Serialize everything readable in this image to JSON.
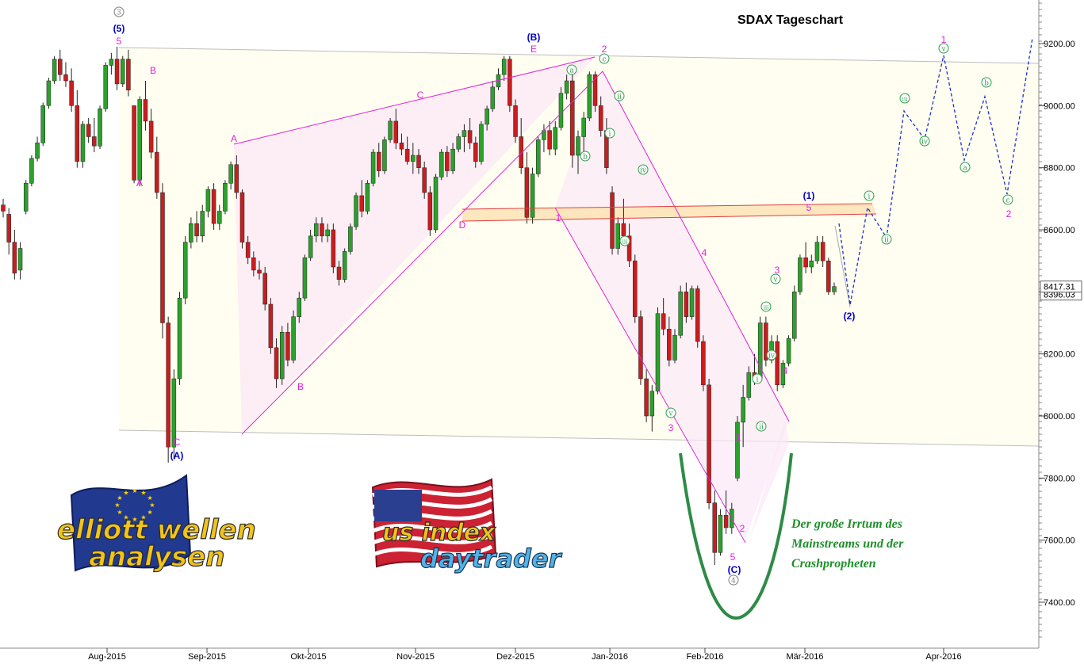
{
  "chart_data": {
    "type": "candlestick",
    "title": "SDAX Tageschart",
    "ylim": [
      7200,
      9320
    ],
    "y_ticks": [
      7400,
      7600,
      7800,
      8000,
      8200,
      8400,
      8600,
      8800,
      9000,
      9200
    ],
    "y_tick_labels": [
      "7400.00",
      "7600.00",
      "7800.00",
      "8000.00",
      "8200.00",
      "8400.00",
      "8600.00",
      "8800.00",
      "9000.00",
      "9200.00"
    ],
    "x_months": [
      "Aug-2015",
      "Sep-2015",
      "Okt-2015",
      "Nov-2015",
      "Dez-2015",
      "Jan-2016",
      "Feb-2016",
      "Mär-2016",
      "Apr-2016"
    ],
    "last_price_label": "8417.31",
    "last_price_label_under": "8396.03",
    "last_price": 8417,
    "candle_colors": {
      "up": "#2ca02c",
      "down": "#c81e1e"
    },
    "annotation_colors": {
      "magenta": "#e020e0",
      "blue": "#0000cc",
      "green_circle": "#2e9e4a",
      "gray": "#808080"
    },
    "candles": [
      [
        8680,
        8700,
        8640,
        8660
      ],
      [
        8650,
        8670,
        8520,
        8560
      ],
      [
        8560,
        8600,
        8440,
        8460
      ],
      [
        8470,
        8560,
        8440,
        8540
      ],
      [
        8660,
        8760,
        8650,
        8750
      ],
      [
        8750,
        8840,
        8740,
        8830
      ],
      [
        8830,
        8900,
        8820,
        8880
      ],
      [
        8880,
        9010,
        8870,
        9000
      ],
      [
        9000,
        9090,
        8990,
        9080
      ],
      [
        9080,
        9160,
        9070,
        9150
      ],
      [
        9150,
        9180,
        9080,
        9100
      ],
      [
        9100,
        9140,
        9060,
        9080
      ],
      [
        9080,
        9120,
        8980,
        9000
      ],
      [
        9000,
        9050,
        8800,
        8820
      ],
      [
        8820,
        8950,
        8800,
        8940
      ],
      [
        8940,
        8960,
        8880,
        8900
      ],
      [
        8900,
        8960,
        8850,
        8870
      ],
      [
        8870,
        9000,
        8860,
        8990
      ],
      [
        8990,
        9140,
        8980,
        9130
      ],
      [
        9130,
        9170,
        9100,
        9150
      ],
      [
        9150,
        9190,
        9050,
        9070
      ],
      [
        9070,
        9160,
        9060,
        9150
      ],
      [
        9150,
        9180,
        9030,
        9050
      ],
      [
        9000,
        9000,
        8750,
        8760
      ],
      [
        8760,
        9030,
        8740,
        9020
      ],
      [
        9020,
        9080,
        8920,
        8950
      ],
      [
        8950,
        8990,
        8830,
        8850
      ],
      [
        8850,
        8900,
        8700,
        8720
      ],
      [
        8720,
        8750,
        8250,
        8300
      ],
      [
        8300,
        8320,
        7850,
        7900
      ],
      [
        7900,
        8150,
        7860,
        8120
      ],
      [
        8120,
        8400,
        8100,
        8380
      ],
      [
        8380,
        8580,
        8360,
        8560
      ],
      [
        8560,
        8640,
        8540,
        8620
      ],
      [
        8620,
        8660,
        8560,
        8580
      ],
      [
        8580,
        8680,
        8560,
        8660
      ],
      [
        8660,
        8740,
        8640,
        8730
      ],
      [
        8730,
        8750,
        8600,
        8620
      ],
      [
        8620,
        8680,
        8600,
        8660
      ],
      [
        8660,
        8760,
        8650,
        8750
      ],
      [
        8750,
        8820,
        8730,
        8810
      ],
      [
        8810,
        8840,
        8700,
        8720
      ],
      [
        8720,
        8730,
        8540,
        8560
      ],
      [
        8560,
        8580,
        8490,
        8510
      ],
      [
        8510,
        8530,
        8450,
        8470
      ],
      [
        8470,
        8500,
        8440,
        8460
      ],
      [
        8460,
        8480,
        8340,
        8360
      ],
      [
        8360,
        8380,
        8200,
        8220
      ],
      [
        8220,
        8250,
        8090,
        8120
      ],
      [
        8120,
        8290,
        8100,
        8270
      ],
      [
        8270,
        8300,
        8160,
        8180
      ],
      [
        8180,
        8340,
        8170,
        8320
      ],
      [
        8320,
        8400,
        8300,
        8380
      ],
      [
        8380,
        8520,
        8370,
        8510
      ],
      [
        8510,
        8600,
        8500,
        8580
      ],
      [
        8580,
        8640,
        8560,
        8620
      ],
      [
        8620,
        8640,
        8560,
        8580
      ],
      [
        8580,
        8620,
        8560,
        8600
      ],
      [
        8600,
        8620,
        8460,
        8480
      ],
      [
        8480,
        8500,
        8420,
        8440
      ],
      [
        8440,
        8540,
        8430,
        8530
      ],
      [
        8530,
        8620,
        8520,
        8610
      ],
      [
        8610,
        8720,
        8600,
        8710
      ],
      [
        8710,
        8760,
        8640,
        8660
      ],
      [
        8660,
        8760,
        8650,
        8750
      ],
      [
        8750,
        8860,
        8740,
        8850
      ],
      [
        8850,
        8880,
        8770,
        8790
      ],
      [
        8790,
        8900,
        8780,
        8890
      ],
      [
        8890,
        8960,
        8880,
        8950
      ],
      [
        8950,
        8990,
        8860,
        8880
      ],
      [
        8880,
        8910,
        8840,
        8860
      ],
      [
        8860,
        8900,
        8810,
        8820
      ],
      [
        8820,
        8880,
        8780,
        8840
      ],
      [
        8840,
        8860,
        8780,
        8800
      ],
      [
        8800,
        8820,
        8700,
        8720
      ],
      [
        8720,
        8740,
        8580,
        8600
      ],
      [
        8600,
        8780,
        8590,
        8770
      ],
      [
        8770,
        8860,
        8760,
        8850
      ],
      [
        8850,
        8870,
        8770,
        8790
      ],
      [
        8790,
        8880,
        8780,
        8860
      ],
      [
        8860,
        8910,
        8850,
        8900
      ],
      [
        8900,
        8940,
        8850,
        8920
      ],
      [
        8920,
        8960,
        8860,
        8880
      ],
      [
        8880,
        8900,
        8800,
        8820
      ],
      [
        8820,
        8950,
        8810,
        8940
      ],
      [
        8940,
        9000,
        8920,
        8990
      ],
      [
        8990,
        9080,
        8980,
        9060
      ],
      [
        9060,
        9120,
        9050,
        9100
      ],
      [
        9100,
        9160,
        9080,
        9150
      ],
      [
        9150,
        9160,
        8980,
        9000
      ],
      [
        9000,
        9020,
        8880,
        8900
      ],
      [
        8900,
        8960,
        8780,
        8800
      ],
      [
        8800,
        8850,
        8620,
        8640
      ],
      [
        8640,
        8800,
        8620,
        8780
      ],
      [
        8780,
        8900,
        8770,
        8890
      ],
      [
        8890,
        8940,
        8850,
        8920
      ],
      [
        8920,
        8950,
        8840,
        8860
      ],
      [
        8860,
        8950,
        8840,
        8930
      ],
      [
        8930,
        9060,
        8920,
        9040
      ],
      [
        9040,
        9100,
        9020,
        9080
      ],
      [
        9080,
        9100,
        8800,
        8840
      ],
      [
        8840,
        8920,
        8780,
        8900
      ],
      [
        8900,
        8980,
        8850,
        8960
      ],
      [
        8960,
        9110,
        8950,
        9100
      ],
      [
        9100,
        9110,
        8980,
        9000
      ],
      [
        9000,
        9030,
        8900,
        8920
      ],
      [
        8920,
        8960,
        8780,
        8800
      ],
      [
        8720,
        8740,
        8520,
        8540
      ],
      [
        8540,
        8640,
        8520,
        8620
      ],
      [
        8620,
        8700,
        8560,
        8580
      ],
      [
        8580,
        8620,
        8480,
        8500
      ],
      [
        8500,
        8520,
        8300,
        8320
      ],
      [
        8320,
        8340,
        8100,
        8120
      ],
      [
        8120,
        8150,
        7980,
        8000
      ],
      [
        8000,
        8100,
        7950,
        8080
      ],
      [
        8080,
        8350,
        8070,
        8330
      ],
      [
        8330,
        8380,
        8260,
        8280
      ],
      [
        8280,
        8320,
        8160,
        8180
      ],
      [
        8180,
        8280,
        8170,
        8260
      ],
      [
        8260,
        8420,
        8250,
        8400
      ],
      [
        8400,
        8430,
        8300,
        8320
      ],
      [
        8320,
        8420,
        8310,
        8410
      ],
      [
        8410,
        8420,
        8220,
        8240
      ],
      [
        8240,
        8260,
        8080,
        8100
      ],
      [
        8100,
        8120,
        7700,
        7720
      ],
      [
        7720,
        7760,
        7520,
        7560
      ],
      [
        7560,
        7700,
        7550,
        7680
      ],
      [
        7680,
        7760,
        7620,
        7640
      ],
      [
        7640,
        7720,
        7620,
        7700
      ],
      [
        7800,
        8000,
        7790,
        7980
      ],
      [
        7980,
        8100,
        7900,
        8060
      ],
      [
        8060,
        8160,
        8050,
        8140
      ],
      [
        8140,
        8200,
        8100,
        8120
      ],
      [
        8120,
        8320,
        8110,
        8300
      ],
      [
        8300,
        8320,
        8160,
        8180
      ],
      [
        8180,
        8260,
        8170,
        8240
      ],
      [
        8240,
        8260,
        8080,
        8100
      ],
      [
        8100,
        8180,
        8090,
        8170
      ],
      [
        8170,
        8260,
        8160,
        8250
      ],
      [
        8250,
        8420,
        8240,
        8400
      ],
      [
        8400,
        8520,
        8390,
        8510
      ],
      [
        8510,
        8560,
        8460,
        8480
      ],
      [
        8480,
        8520,
        8460,
        8500
      ],
      [
        8500,
        8580,
        8490,
        8560
      ],
      [
        8560,
        8580,
        8480,
        8500
      ],
      [
        8500,
        8510,
        8390,
        8400
      ],
      [
        8400,
        8430,
        8390,
        8417
      ]
    ],
    "labels": [
      {
        "text": "3",
        "kind": "gray-circle"
      },
      {
        "text": "(5)",
        "kind": "blue"
      },
      {
        "text": "5",
        "kind": "magenta"
      },
      {
        "text": "B",
        "kind": "magenta"
      },
      {
        "text": "A",
        "kind": "magenta"
      },
      {
        "text": "C",
        "kind": "magenta"
      },
      {
        "text": "(A)",
        "kind": "blue"
      },
      {
        "text": "A",
        "kind": "magenta"
      },
      {
        "text": "B",
        "kind": "magenta"
      },
      {
        "text": "C",
        "kind": "magenta"
      },
      {
        "text": "D",
        "kind": "magenta"
      },
      {
        "text": "(B)",
        "kind": "blue"
      },
      {
        "text": "E",
        "kind": "magenta"
      },
      {
        "text": "2",
        "kind": "magenta"
      },
      {
        "text": "c",
        "kind": "green-circle"
      },
      {
        "text": "a",
        "kind": "green-circle"
      },
      {
        "text": "b",
        "kind": "green-circle"
      },
      {
        "text": "i",
        "kind": "green-circle"
      },
      {
        "text": "ii",
        "kind": "green-circle"
      },
      {
        "text": "1",
        "kind": "magenta"
      },
      {
        "text": "iii",
        "kind": "green-circle"
      },
      {
        "text": "iv",
        "kind": "green-circle"
      },
      {
        "text": "v",
        "kind": "green-circle"
      },
      {
        "text": "3",
        "kind": "magenta"
      },
      {
        "text": "4",
        "kind": "magenta"
      },
      {
        "text": "1",
        "kind": "magenta"
      },
      {
        "text": "2",
        "kind": "magenta"
      },
      {
        "text": "5",
        "kind": "magenta"
      },
      {
        "text": "(C)",
        "kind": "blue"
      },
      {
        "text": "4",
        "kind": "gray-circle"
      },
      {
        "text": "i",
        "kind": "green-circle"
      },
      {
        "text": "ii",
        "kind": "green-circle"
      },
      {
        "text": "iii",
        "kind": "green-circle"
      },
      {
        "text": "iv",
        "kind": "green-circle"
      },
      {
        "text": "v",
        "kind": "green-circle"
      },
      {
        "text": "3",
        "kind": "magenta"
      },
      {
        "text": "4",
        "kind": "magenta"
      },
      {
        "text": "(1)",
        "kind": "blue"
      },
      {
        "text": "5",
        "kind": "magenta"
      },
      {
        "text": "(2)",
        "kind": "blue"
      },
      {
        "text": "i",
        "kind": "green-circle"
      },
      {
        "text": "ii",
        "kind": "green-circle"
      },
      {
        "text": "iii",
        "kind": "green-circle"
      },
      {
        "text": "iv",
        "kind": "green-circle"
      },
      {
        "text": "v",
        "kind": "green-circle"
      },
      {
        "text": "1",
        "kind": "magenta"
      },
      {
        "text": "a",
        "kind": "green-circle"
      },
      {
        "text": "b",
        "kind": "green-circle"
      },
      {
        "text": "c",
        "kind": "green-circle"
      },
      {
        "text": "2",
        "kind": "magenta"
      }
    ],
    "note_lines": [
      "Der große Irrtum des",
      "Mainstreams und der",
      "Crashpropheten"
    ],
    "logo_left": [
      "elliott wellen",
      "analysen"
    ],
    "logo_right": [
      "us index",
      "daytrader"
    ]
  }
}
